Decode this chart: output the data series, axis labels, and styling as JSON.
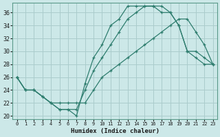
{
  "xlabel": "Humidex (Indice chaleur)",
  "bg_color": "#cce8e8",
  "grid_color": "#aacccc",
  "line_color": "#2e7d6e",
  "xlim": [
    -0.5,
    23.5
  ],
  "ylim": [
    19.5,
    37.5
  ],
  "xticks": [
    0,
    1,
    2,
    3,
    4,
    5,
    6,
    7,
    8,
    9,
    10,
    11,
    12,
    13,
    14,
    15,
    16,
    17,
    18,
    19,
    20,
    21,
    22,
    23
  ],
  "yticks": [
    20,
    22,
    24,
    26,
    28,
    30,
    32,
    34,
    36
  ],
  "line1_x": [
    0,
    1,
    2,
    3,
    4,
    5,
    6,
    7,
    8,
    9,
    10,
    11,
    12,
    13,
    14,
    15,
    16,
    17,
    18,
    19,
    20,
    21,
    22,
    23
  ],
  "line1_y": [
    26,
    24,
    24,
    23,
    22,
    21,
    21,
    20,
    25,
    29,
    31,
    34,
    35,
    37,
    37,
    37,
    37,
    36,
    36,
    34,
    30,
    29,
    28,
    28
  ],
  "line2_x": [
    0,
    1,
    2,
    3,
    4,
    5,
    6,
    7,
    8,
    9,
    10,
    11,
    12,
    13,
    14,
    15,
    16,
    17,
    18,
    19,
    20,
    21,
    22,
    23
  ],
  "line2_y": [
    26,
    24,
    24,
    23,
    22,
    22,
    22,
    22,
    22,
    24,
    26,
    27,
    28,
    29,
    30,
    31,
    32,
    33,
    34,
    35,
    35,
    33,
    31,
    28
  ],
  "line3_x": [
    0,
    1,
    2,
    3,
    4,
    5,
    6,
    7,
    8,
    9,
    10,
    11,
    12,
    13,
    14,
    15,
    16,
    17,
    18,
    19,
    20,
    21,
    22,
    23
  ],
  "line3_y": [
    26,
    24,
    24,
    23,
    22,
    21,
    21,
    21,
    24,
    27,
    29,
    31,
    33,
    35,
    36,
    37,
    37,
    37,
    36,
    34,
    30,
    30,
    29,
    28
  ]
}
